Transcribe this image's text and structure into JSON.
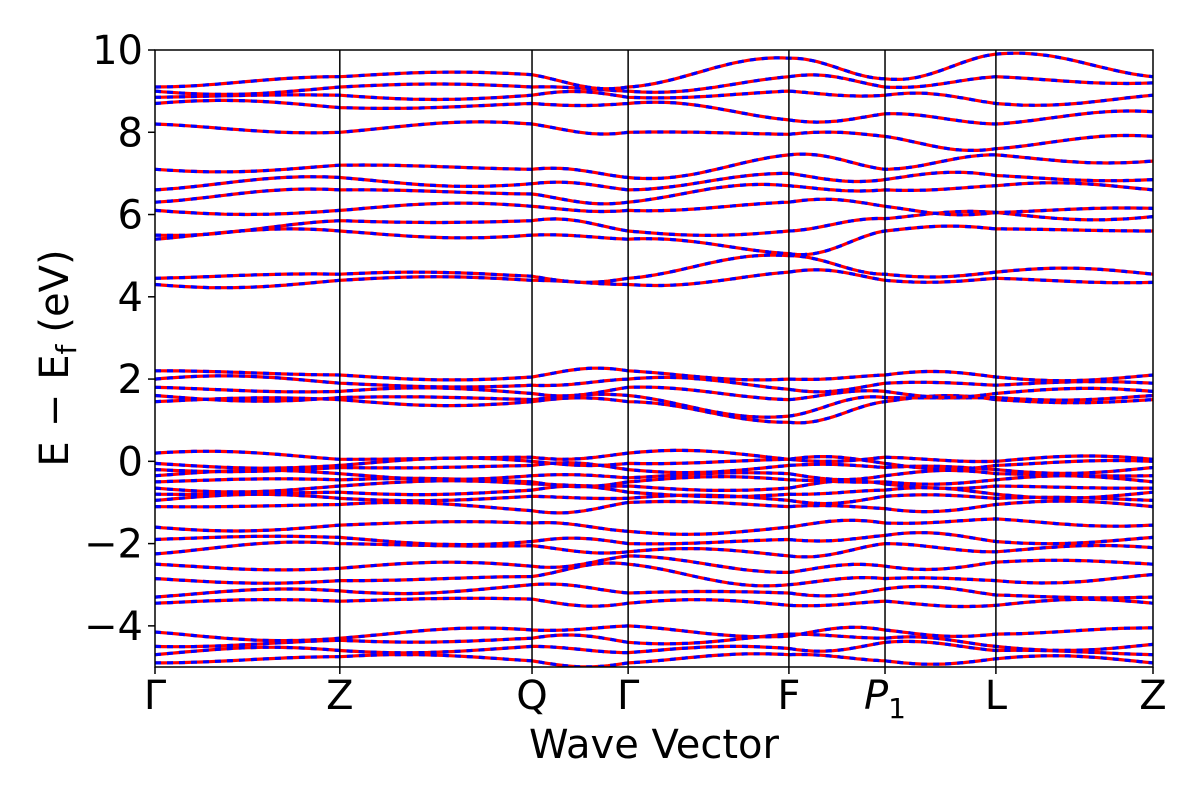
{
  "chart_data": {
    "type": "line",
    "title": "",
    "xlabel": "Wave Vector",
    "ylabel_parts": {
      "E": "E",
      "minus": "−",
      "Esub": "E",
      "sub": "f",
      "unit": "(eV)"
    },
    "ylim": [
      -5,
      10
    ],
    "yticks": [
      -4,
      -2,
      0,
      2,
      4,
      6,
      8,
      10
    ],
    "ytick_labels": [
      "−4",
      "−2",
      "0",
      "2",
      "4",
      "6",
      "8",
      "10"
    ],
    "kpoints": [
      {
        "label": "Γ",
        "pos": 0.0
      },
      {
        "label": "Z",
        "pos": 1.0
      },
      {
        "label": "Q",
        "pos": 2.04
      },
      {
        "label": "Γ",
        "pos": 2.56
      },
      {
        "label": "F",
        "pos": 3.43
      },
      {
        "label": "P",
        "sub": "1",
        "italic": true,
        "pos": 3.95
      },
      {
        "label": "L",
        "pos": 4.55
      },
      {
        "label": "Z",
        "pos": 5.4
      }
    ],
    "xlim": [
      0,
      5.4
    ],
    "series": [
      {
        "style": "spin-up",
        "color": "#ff0000"
      },
      {
        "style": "spin-down",
        "color": "#0000ff"
      }
    ],
    "band_anchors": [
      [
        -4.9,
        -4.75,
        -4.85,
        -4.9,
        -4.7,
        -4.85,
        -4.8,
        -4.9
      ],
      [
        -4.7,
        -4.6,
        -4.5,
        -4.65,
        -4.55,
        -4.4,
        -4.6,
        -4.7
      ],
      [
        -4.5,
        -4.35,
        -4.3,
        -4.4,
        -4.2,
        -4.3,
        -4.5,
        -4.45
      ],
      [
        -4.15,
        -4.3,
        -4.1,
        -4.0,
        -4.25,
        -4.1,
        -4.2,
        -4.05
      ],
      [
        -3.45,
        -3.4,
        -3.35,
        -3.45,
        -3.5,
        -3.4,
        -3.5,
        -3.45
      ],
      [
        -3.3,
        -3.15,
        -3.0,
        -3.2,
        -3.2,
        -3.1,
        -3.25,
        -3.3
      ],
      [
        -2.85,
        -2.9,
        -2.8,
        -2.5,
        -3.0,
        -2.85,
        -2.9,
        -2.75
      ],
      [
        -2.5,
        -2.6,
        -2.55,
        -2.3,
        -2.7,
        -2.55,
        -2.45,
        -2.5
      ],
      [
        -2.25,
        -2.0,
        -2.05,
        -2.2,
        -2.3,
        -2.0,
        -2.2,
        -2.1
      ],
      [
        -1.9,
        -1.85,
        -1.95,
        -2.0,
        -1.9,
        -1.8,
        -1.95,
        -1.85
      ],
      [
        -1.6,
        -1.55,
        -1.5,
        -1.7,
        -1.6,
        -1.5,
        -1.4,
        -1.55
      ],
      [
        -1.1,
        -1.05,
        -1.2,
        -1.0,
        -1.1,
        -1.15,
        -1.05,
        -1.1
      ],
      [
        -0.95,
        -0.9,
        -0.85,
        -0.9,
        -0.95,
        -0.85,
        -0.9,
        -0.95
      ],
      [
        -0.8,
        -0.75,
        -0.7,
        -0.75,
        -0.8,
        -0.7,
        -0.8,
        -0.75
      ],
      [
        -0.65,
        -0.6,
        -0.55,
        -0.6,
        -0.65,
        -0.55,
        -0.6,
        -0.65
      ],
      [
        -0.5,
        -0.45,
        -0.5,
        -0.5,
        -0.45,
        -0.5,
        -0.45,
        -0.5
      ],
      [
        -0.35,
        -0.3,
        -0.35,
        -0.4,
        -0.3,
        -0.35,
        -0.3,
        -0.35
      ],
      [
        -0.2,
        -0.15,
        -0.1,
        -0.2,
        -0.1,
        -0.15,
        -0.2,
        -0.15
      ],
      [
        -0.05,
        -0.1,
        0.0,
        -0.05,
        0.05,
        -0.05,
        -0.1,
        0.0
      ],
      [
        0.2,
        0.05,
        0.1,
        0.2,
        0.05,
        0.1,
        0.0,
        0.05
      ],
      [
        1.45,
        1.5,
        1.45,
        1.45,
        0.95,
        1.45,
        1.5,
        1.5
      ],
      [
        1.6,
        1.55,
        1.5,
        1.6,
        1.1,
        1.55,
        1.55,
        1.6
      ],
      [
        1.8,
        1.7,
        1.65,
        1.8,
        1.5,
        1.7,
        1.65,
        1.7
      ],
      [
        2.0,
        1.9,
        1.85,
        2.0,
        1.75,
        1.9,
        1.85,
        1.9
      ],
      [
        2.2,
        2.1,
        2.05,
        2.2,
        2.0,
        2.1,
        2.05,
        2.1
      ],
      [
        4.3,
        4.4,
        4.4,
        4.3,
        4.6,
        4.4,
        4.45,
        4.35
      ],
      [
        4.45,
        4.55,
        4.5,
        4.45,
        5.0,
        4.55,
        4.6,
        4.55
      ],
      [
        5.4,
        5.6,
        5.5,
        5.4,
        5.05,
        5.6,
        5.65,
        5.6
      ],
      [
        5.5,
        5.85,
        5.85,
        5.6,
        5.6,
        5.9,
        6.05,
        5.95
      ],
      [
        6.1,
        6.1,
        6.2,
        6.1,
        6.3,
        6.2,
        6.05,
        6.15
      ],
      [
        6.3,
        6.6,
        6.5,
        6.3,
        6.7,
        6.6,
        6.7,
        6.6
      ],
      [
        6.6,
        6.9,
        6.75,
        6.6,
        7.0,
        6.85,
        6.95,
        6.85
      ],
      [
        7.1,
        7.2,
        7.1,
        6.9,
        7.45,
        7.1,
        7.45,
        7.3
      ],
      [
        8.2,
        8.0,
        8.2,
        8.0,
        7.95,
        7.9,
        7.6,
        7.9
      ],
      [
        8.7,
        8.6,
        8.7,
        8.7,
        8.3,
        8.45,
        8.2,
        8.5
      ],
      [
        8.85,
        8.9,
        8.9,
        8.85,
        9.0,
        8.9,
        8.7,
        8.9
      ],
      [
        9.0,
        9.1,
        9.1,
        9.0,
        9.35,
        9.1,
        9.35,
        9.2
      ],
      [
        9.1,
        9.35,
        9.4,
        9.1,
        9.8,
        9.3,
        9.9,
        9.35
      ]
    ]
  }
}
